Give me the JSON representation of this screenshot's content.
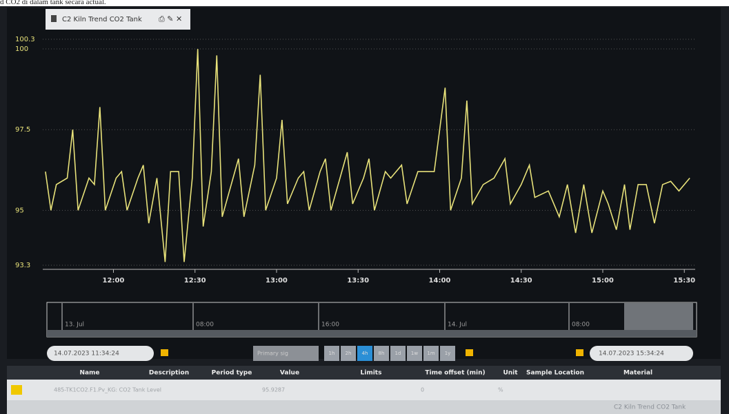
{
  "caption": "d CO2 di dalam tank secara actual.",
  "tab": {
    "title": "C2 Kiln Trend CO2 Tank"
  },
  "chart_data": {
    "type": "line",
    "grid": true,
    "series": [
      {
        "name": "485-TK1CO2.F1.Pv_KG: CO2 Tank Level",
        "color": "#e8e27a",
        "x": [
          "11:35",
          "11:37",
          "11:39",
          "11:43",
          "11:45",
          "11:47",
          "11:51",
          "11:53",
          "11:55",
          "11:57",
          "12:01",
          "12:03",
          "12:05",
          "12:09",
          "12:11",
          "12:13",
          "12:16",
          "12:19",
          "12:21",
          "12:24",
          "12:26",
          "12:29",
          "12:31",
          "12:33",
          "12:36",
          "12:38",
          "12:40",
          "12:44",
          "12:46",
          "12:48",
          "12:52",
          "12:54",
          "12:56",
          "13:00",
          "13:02",
          "13:04",
          "13:08",
          "13:10",
          "13:12",
          "13:16",
          "13:18",
          "13:20",
          "13:24",
          "13:26",
          "13:28",
          "13:32",
          "13:34",
          "13:36",
          "13:40",
          "13:42",
          "13:46",
          "13:48",
          "13:52",
          "13:58",
          "14:02",
          "14:04",
          "14:08",
          "14:10",
          "14:12",
          "14:16",
          "14:20",
          "14:24",
          "14:26",
          "14:30",
          "14:33",
          "14:35",
          "14:40",
          "14:44",
          "14:47",
          "14:50",
          "14:53",
          "14:56",
          "15:00",
          "15:02",
          "15:05",
          "15:08",
          "15:10",
          "15:13",
          "15:16",
          "15:19",
          "15:22",
          "15:25",
          "15:28",
          "15:32"
        ],
        "values": [
          96.2,
          95.0,
          95.8,
          96.0,
          97.5,
          95.0,
          96.0,
          95.8,
          98.2,
          95.0,
          96.0,
          96.2,
          95.0,
          96.0,
          96.4,
          94.6,
          96.0,
          93.4,
          96.2,
          96.2,
          93.4,
          96.0,
          100.0,
          94.5,
          96.2,
          99.8,
          94.8,
          96.0,
          96.6,
          94.8,
          96.4,
          99.2,
          95.0,
          96.0,
          97.8,
          95.2,
          96.0,
          96.2,
          95.0,
          96.2,
          96.6,
          95.0,
          96.2,
          96.8,
          95.2,
          96.0,
          96.6,
          95.0,
          96.2,
          96.0,
          96.4,
          95.2,
          96.2,
          96.2,
          98.8,
          95.0,
          96.0,
          98.4,
          95.2,
          95.8,
          96.0,
          96.6,
          95.2,
          95.8,
          96.4,
          95.4,
          95.6,
          94.8,
          95.8,
          94.3,
          95.8,
          94.3,
          95.6,
          95.2,
          94.4,
          95.8,
          94.4,
          95.8,
          95.8,
          94.6,
          95.8,
          95.9,
          95.6,
          96.0
        ]
      }
    ],
    "xlim": [
      "11:34",
      "15:34"
    ],
    "xticks": [
      "12:00",
      "12:30",
      "13:00",
      "13:30",
      "14:00",
      "14:30",
      "15:00",
      "15:30"
    ],
    "ylim": [
      93.3,
      100.3
    ],
    "yticks": [
      93.3,
      95,
      97.5,
      100,
      100.3
    ]
  },
  "navigator": {
    "labels": [
      "13. Jul",
      "08:00",
      "16:00",
      "14. Jul",
      "08:00"
    ]
  },
  "controls": {
    "start": "14.07.2023 11:34:24",
    "end": "14.07.2023 15:34:24",
    "signal": "Primary sig",
    "ranges": [
      "1h",
      "2h",
      "4h",
      "8h",
      "1d",
      "1w",
      "1m",
      "1y"
    ]
  },
  "table": {
    "columns": [
      "Name",
      "Description",
      "Period type",
      "Value",
      "Limits",
      "Time offset (min)",
      "Unit",
      "Sample Location",
      "Material"
    ],
    "rows": [
      [
        "485-TK1CO2.F1.Pv_KG: CO2 Tank Level",
        "95.9287",
        "0",
        "%"
      ]
    ]
  },
  "footer": {
    "tab": "C2 Kiln Trend CO2 Tank"
  }
}
